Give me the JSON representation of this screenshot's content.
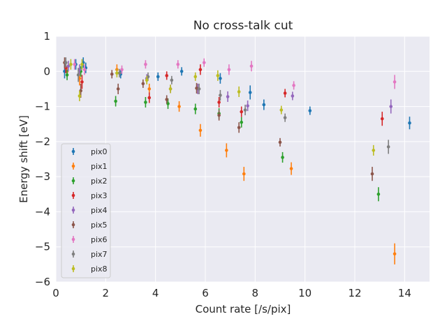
{
  "chart_data": {
    "type": "scatter",
    "title": "No cross-talk cut",
    "xlabel": "Count rate [/s/pix]",
    "ylabel": "Energy shift [eV]",
    "xlim": [
      0,
      15
    ],
    "ylim": [
      -6,
      1
    ],
    "xticks": [
      0,
      2,
      4,
      6,
      8,
      10,
      12,
      14
    ],
    "yticks": [
      1,
      0,
      -1,
      -2,
      -3,
      -4,
      -5,
      -6
    ],
    "xtick_labels": [
      "0",
      "2",
      "4",
      "6",
      "8",
      "10",
      "12",
      "14"
    ],
    "ytick_labels": [
      "1",
      "0",
      "−1",
      "−2",
      "−3",
      "−4",
      "−5",
      "−6"
    ],
    "grid": true,
    "legend_position": "lower-left",
    "series": [
      {
        "name": "pix0",
        "color": "#1f77b4",
        "points": [
          {
            "x": 0.35,
            "y": 0.0,
            "err": 0.2
          },
          {
            "x": 0.8,
            "y": 0.2,
            "err": 0.15
          },
          {
            "x": 1.1,
            "y": 0.25,
            "err": 0.15
          },
          {
            "x": 1.2,
            "y": 0.1,
            "err": 0.15
          },
          {
            "x": 2.6,
            "y": -0.08,
            "err": 0.12
          },
          {
            "x": 4.1,
            "y": -0.15,
            "err": 0.12
          },
          {
            "x": 5.05,
            "y": 0.0,
            "err": 0.12
          },
          {
            "x": 6.6,
            "y": -0.2,
            "err": 0.15
          },
          {
            "x": 7.8,
            "y": -0.6,
            "err": 0.2
          },
          {
            "x": 8.35,
            "y": -0.95,
            "err": 0.15
          },
          {
            "x": 10.2,
            "y": -1.12,
            "err": 0.12
          },
          {
            "x": 14.2,
            "y": -1.47,
            "err": 0.18
          }
        ]
      },
      {
        "name": "pix1",
        "color": "#ff7f0e",
        "points": [
          {
            "x": 0.45,
            "y": 0.0,
            "err": 0.15
          },
          {
            "x": 0.95,
            "y": -0.2,
            "err": 0.2
          },
          {
            "x": 2.45,
            "y": 0.05,
            "err": 0.15
          },
          {
            "x": 3.75,
            "y": -0.5,
            "err": 0.15
          },
          {
            "x": 4.95,
            "y": -1.0,
            "err": 0.15
          },
          {
            "x": 5.8,
            "y": -1.68,
            "err": 0.18
          },
          {
            "x": 6.85,
            "y": -2.25,
            "err": 0.2
          },
          {
            "x": 7.55,
            "y": -2.92,
            "err": 0.2
          },
          {
            "x": 9.45,
            "y": -2.77,
            "err": 0.18
          },
          {
            "x": 13.6,
            "y": -5.2,
            "err": 0.3
          }
        ]
      },
      {
        "name": "pix2",
        "color": "#2ca02c",
        "points": [
          {
            "x": 0.45,
            "y": -0.1,
            "err": 0.15
          },
          {
            "x": 1.0,
            "y": 0.0,
            "err": 0.15
          },
          {
            "x": 2.4,
            "y": -0.85,
            "err": 0.15
          },
          {
            "x": 3.6,
            "y": -0.88,
            "err": 0.15
          },
          {
            "x": 4.5,
            "y": -0.92,
            "err": 0.15
          },
          {
            "x": 5.6,
            "y": -1.07,
            "err": 0.15
          },
          {
            "x": 6.55,
            "y": -1.2,
            "err": 0.15
          },
          {
            "x": 7.45,
            "y": -1.45,
            "err": 0.15
          },
          {
            "x": 9.1,
            "y": -2.45,
            "err": 0.15
          },
          {
            "x": 12.95,
            "y": -3.5,
            "err": 0.2
          }
        ]
      },
      {
        "name": "pix3",
        "color": "#d62728",
        "points": [
          {
            "x": 0.4,
            "y": 0.1,
            "err": 0.15
          },
          {
            "x": 1.05,
            "y": -0.3,
            "err": 0.2
          },
          {
            "x": 3.75,
            "y": -0.75,
            "err": 0.15
          },
          {
            "x": 4.45,
            "y": -0.12,
            "err": 0.12
          },
          {
            "x": 5.8,
            "y": 0.05,
            "err": 0.15
          },
          {
            "x": 6.55,
            "y": -0.88,
            "err": 0.15
          },
          {
            "x": 7.45,
            "y": -1.15,
            "err": 0.15
          },
          {
            "x": 9.2,
            "y": -0.62,
            "err": 0.12
          },
          {
            "x": 13.1,
            "y": -1.35,
            "err": 0.2
          }
        ]
      },
      {
        "name": "pix4",
        "color": "#9467bd",
        "points": [
          {
            "x": 0.5,
            "y": 0.15,
            "err": 0.15
          },
          {
            "x": 0.95,
            "y": 0.05,
            "err": 0.15
          },
          {
            "x": 3.65,
            "y": -0.2,
            "err": 0.12
          },
          {
            "x": 4.6,
            "y": -0.5,
            "err": 0.12
          },
          {
            "x": 5.7,
            "y": -0.5,
            "err": 0.15
          },
          {
            "x": 6.9,
            "y": -0.72,
            "err": 0.15
          },
          {
            "x": 7.7,
            "y": -0.98,
            "err": 0.15
          },
          {
            "x": 9.5,
            "y": -0.7,
            "err": 0.12
          },
          {
            "x": 13.45,
            "y": -1.0,
            "err": 0.2
          }
        ]
      },
      {
        "name": "pix5",
        "color": "#8c564b",
        "points": [
          {
            "x": 0.35,
            "y": 0.25,
            "err": 0.15
          },
          {
            "x": 1.0,
            "y": -0.55,
            "err": 0.2
          },
          {
            "x": 2.25,
            "y": -0.08,
            "err": 0.12
          },
          {
            "x": 2.5,
            "y": -0.5,
            "err": 0.15
          },
          {
            "x": 3.5,
            "y": -0.35,
            "err": 0.12
          },
          {
            "x": 4.45,
            "y": -0.8,
            "err": 0.12
          },
          {
            "x": 5.65,
            "y": -0.48,
            "err": 0.15
          },
          {
            "x": 6.55,
            "y": -1.25,
            "err": 0.15
          },
          {
            "x": 7.35,
            "y": -1.6,
            "err": 0.15
          },
          {
            "x": 9.0,
            "y": -2.02,
            "err": 0.12
          },
          {
            "x": 12.7,
            "y": -2.92,
            "err": 0.2
          }
        ]
      },
      {
        "name": "pix6",
        "color": "#e377c2",
        "points": [
          {
            "x": 0.75,
            "y": 0.2,
            "err": 0.15
          },
          {
            "x": 1.15,
            "y": 0.05,
            "err": 0.15
          },
          {
            "x": 2.65,
            "y": 0.05,
            "err": 0.12
          },
          {
            "x": 3.6,
            "y": 0.2,
            "err": 0.12
          },
          {
            "x": 4.9,
            "y": 0.2,
            "err": 0.12
          },
          {
            "x": 5.95,
            "y": 0.25,
            "err": 0.12
          },
          {
            "x": 6.95,
            "y": 0.05,
            "err": 0.15
          },
          {
            "x": 7.85,
            "y": 0.15,
            "err": 0.15
          },
          {
            "x": 9.55,
            "y": -0.4,
            "err": 0.12
          },
          {
            "x": 13.6,
            "y": -0.3,
            "err": 0.2
          }
        ]
      },
      {
        "name": "pix7",
        "color": "#7f7f7f",
        "points": [
          {
            "x": 0.4,
            "y": 0.25,
            "err": 0.15
          },
          {
            "x": 0.9,
            "y": -0.1,
            "err": 0.2
          },
          {
            "x": 2.55,
            "y": -0.05,
            "err": 0.12
          },
          {
            "x": 3.7,
            "y": -0.15,
            "err": 0.12
          },
          {
            "x": 4.65,
            "y": -0.25,
            "err": 0.12
          },
          {
            "x": 5.75,
            "y": -0.5,
            "err": 0.15
          },
          {
            "x": 6.6,
            "y": -0.68,
            "err": 0.15
          },
          {
            "x": 7.6,
            "y": -1.1,
            "err": 0.15
          },
          {
            "x": 9.2,
            "y": -1.32,
            "err": 0.12
          },
          {
            "x": 13.35,
            "y": -2.15,
            "err": 0.2
          }
        ]
      },
      {
        "name": "pix8",
        "color": "#bcbd22",
        "points": [
          {
            "x": 0.6,
            "y": 0.2,
            "err": 0.15
          },
          {
            "x": 0.95,
            "y": -0.7,
            "err": 0.15
          },
          {
            "x": 1.05,
            "y": 0.2,
            "err": 0.15
          },
          {
            "x": 2.45,
            "y": -0.05,
            "err": 0.12
          },
          {
            "x": 3.65,
            "y": -0.25,
            "err": 0.12
          },
          {
            "x": 4.6,
            "y": -0.5,
            "err": 0.12
          },
          {
            "x": 5.6,
            "y": -0.15,
            "err": 0.12
          },
          {
            "x": 6.5,
            "y": -0.12,
            "err": 0.15
          },
          {
            "x": 7.35,
            "y": -0.58,
            "err": 0.15
          },
          {
            "x": 9.05,
            "y": -1.1,
            "err": 0.12
          },
          {
            "x": 12.75,
            "y": -2.25,
            "err": 0.15
          }
        ]
      }
    ]
  }
}
